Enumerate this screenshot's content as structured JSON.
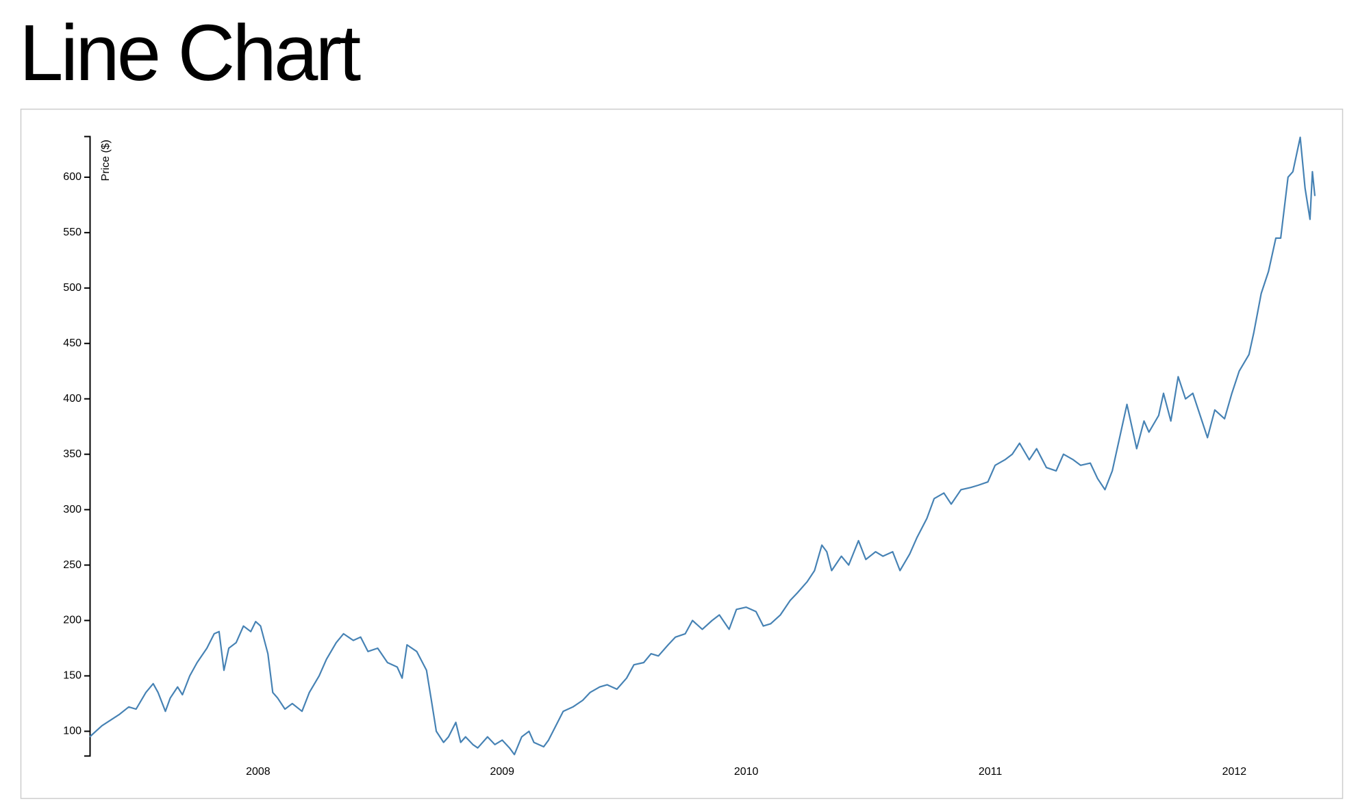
{
  "chart_data": {
    "type": "line",
    "title": "Line Chart",
    "y_label": "Price ($)",
    "color": "#4682b4",
    "xlim": [
      2007.31,
      2012.33
    ],
    "xticks": [
      2008,
      2009,
      2010,
      2011,
      2012
    ],
    "ylim": [
      78,
      637
    ],
    "yticks": [
      100,
      150,
      200,
      250,
      300,
      350,
      400,
      450,
      500,
      550,
      600
    ],
    "x": [
      2007.31,
      2007.36,
      2007.43,
      2007.47,
      2007.5,
      2007.54,
      2007.57,
      2007.59,
      2007.62,
      2007.64,
      2007.67,
      2007.69,
      2007.72,
      2007.75,
      2007.79,
      2007.82,
      2007.84,
      2007.86,
      2007.88,
      2007.91,
      2007.94,
      2007.97,
      2007.99,
      2008.01,
      2008.04,
      2008.06,
      2008.08,
      2008.11,
      2008.14,
      2008.18,
      2008.21,
      2008.25,
      2008.28,
      2008.32,
      2008.35,
      2008.39,
      2008.42,
      2008.45,
      2008.49,
      2008.53,
      2008.57,
      2008.59,
      2008.61,
      2008.65,
      2008.69,
      2008.71,
      2008.73,
      2008.76,
      2008.78,
      2008.81,
      2008.83,
      2008.85,
      2008.88,
      2008.9,
      2008.94,
      2008.97,
      2009.0,
      2009.03,
      2009.05,
      2009.08,
      2009.11,
      2009.13,
      2009.17,
      2009.19,
      2009.22,
      2009.25,
      2009.29,
      2009.33,
      2009.36,
      2009.4,
      2009.43,
      2009.47,
      2009.51,
      2009.54,
      2009.58,
      2009.61,
      2009.64,
      2009.68,
      2009.71,
      2009.75,
      2009.78,
      2009.82,
      2009.86,
      2009.89,
      2009.93,
      2009.96,
      2010.0,
      2010.04,
      2010.07,
      2010.1,
      2010.14,
      2010.18,
      2010.21,
      2010.25,
      2010.28,
      2010.31,
      2010.33,
      2010.35,
      2010.39,
      2010.42,
      2010.46,
      2010.49,
      2010.53,
      2010.56,
      2010.6,
      2010.63,
      2010.67,
      2010.7,
      2010.74,
      2010.77,
      2010.81,
      2010.84,
      2010.88,
      2010.92,
      2010.95,
      2010.99,
      2011.02,
      2011.06,
      2011.09,
      2011.12,
      2011.16,
      2011.19,
      2011.23,
      2011.27,
      2011.3,
      2011.34,
      2011.37,
      2011.41,
      2011.44,
      2011.47,
      2011.5,
      2011.53,
      2011.56,
      2011.58,
      2011.6,
      2011.63,
      2011.65,
      2011.69,
      2011.71,
      2011.74,
      2011.77,
      2011.8,
      2011.83,
      2011.86,
      2011.89,
      2011.92,
      2011.96,
      2011.99,
      2012.02,
      2012.06,
      2012.08,
      2012.11,
      2012.14,
      2012.17,
      2012.19,
      2012.22,
      2012.24,
      2012.27,
      2012.29,
      2012.31,
      2012.32,
      2012.33
    ],
    "values": [
      95,
      105,
      115,
      122,
      120,
      135,
      143,
      135,
      118,
      130,
      140,
      133,
      150,
      162,
      175,
      188,
      190,
      155,
      175,
      180,
      195,
      190,
      199,
      195,
      170,
      135,
      130,
      120,
      125,
      118,
      135,
      150,
      165,
      180,
      188,
      182,
      185,
      172,
      175,
      162,
      158,
      148,
      178,
      172,
      155,
      128,
      100,
      90,
      95,
      108,
      90,
      95,
      88,
      85,
      95,
      88,
      92,
      85,
      79,
      95,
      100,
      90,
      86,
      92,
      105,
      118,
      122,
      128,
      135,
      140,
      142,
      138,
      148,
      160,
      162,
      170,
      168,
      178,
      185,
      188,
      200,
      192,
      200,
      205,
      192,
      210,
      212,
      208,
      195,
      197,
      205,
      218,
      225,
      235,
      245,
      268,
      262,
      245,
      258,
      250,
      272,
      255,
      262,
      258,
      262,
      245,
      260,
      275,
      292,
      310,
      315,
      305,
      318,
      320,
      322,
      325,
      340,
      345,
      350,
      360,
      345,
      355,
      338,
      335,
      350,
      345,
      340,
      342,
      328,
      318,
      335,
      365,
      395,
      375,
      355,
      380,
      370,
      385,
      405,
      380,
      420,
      400,
      405,
      385,
      365,
      390,
      382,
      405,
      425,
      440,
      460,
      495,
      515,
      545,
      545,
      600,
      605,
      636,
      590,
      562,
      605,
      583
    ]
  }
}
